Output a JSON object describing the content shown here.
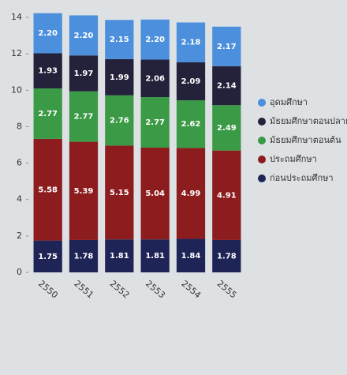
{
  "chart_data": {
    "type": "stacked_bar",
    "categories": [
      "2550",
      "2551",
      "2552",
      "2553",
      "2554",
      "2555"
    ],
    "series": [
      {
        "name": "ก่อนประถมศึกษา",
        "color": "#1f2456",
        "values": [
          1.75,
          1.78,
          1.81,
          1.81,
          1.84,
          1.78
        ],
        "value_labels": [
          "1.75",
          "1.78",
          "1.81",
          "1.81",
          "1.84",
          "1.78"
        ]
      },
      {
        "name": "ประถมศึกษา",
        "color": "#8c1c1e",
        "values": [
          5.58,
          5.39,
          5.15,
          5.04,
          4.99,
          4.91
        ],
        "value_labels": [
          "5.58",
          "5.39",
          "5.15",
          "5.04",
          "4.99",
          "4.91"
        ]
      },
      {
        "name": "มัธยมศึกษาตอนต้น",
        "color": "#3b9a46",
        "values": [
          2.77,
          2.77,
          2.76,
          2.77,
          2.62,
          2.49
        ],
        "value_labels": [
          "2.77",
          "2.77",
          "2.76",
          "2.77",
          "2.62",
          "2.49"
        ]
      },
      {
        "name": "มัธยมศึกษาตอนปลาย",
        "color": "#24213a",
        "values": [
          1.93,
          1.97,
          1.99,
          2.06,
          2.09,
          2.14
        ],
        "value_labels": [
          "1.93",
          "1.97",
          "1.99",
          "2.06",
          "2.09",
          "2.14"
        ]
      },
      {
        "name": "อุดมศึกษา",
        "color": "#4b8fdd",
        "values": [
          2.2,
          2.2,
          2.15,
          2.2,
          2.18,
          2.17
        ],
        "value_labels": [
          "2.20",
          "2.20",
          "2.15",
          "2.20",
          "2.18",
          "2.17"
        ]
      }
    ],
    "ylim": [
      0,
      14
    ],
    "yticks": [
      0,
      2,
      4,
      6,
      8,
      10,
      12,
      14
    ],
    "legend": "right"
  }
}
